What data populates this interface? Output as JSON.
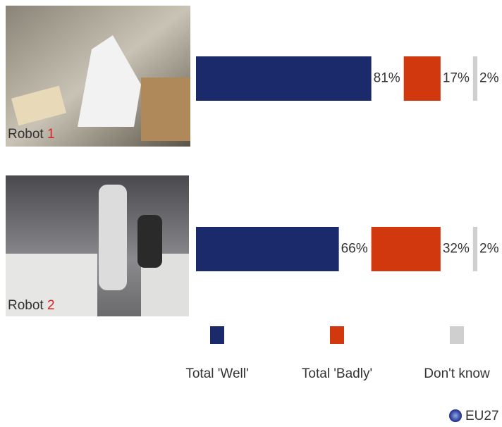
{
  "chart_data": {
    "type": "bar",
    "orientation": "horizontal",
    "stacked": true,
    "category_prefix": "Robot",
    "categories": [
      "1",
      "2"
    ],
    "series": [
      {
        "name": "Total 'Well'",
        "color": "#1b2a6b",
        "values": [
          81,
          66
        ],
        "value_labels": [
          "81%",
          "66%"
        ]
      },
      {
        "name": "Total 'Badly'",
        "color": "#d2380e",
        "values": [
          17,
          32
        ],
        "value_labels": [
          "17%",
          "32%"
        ]
      },
      {
        "name": "Don't know",
        "color": "#cfcfcf",
        "values": [
          2,
          2
        ],
        "value_labels": [
          "2%",
          "2%"
        ]
      }
    ],
    "source": "EU27"
  }
}
